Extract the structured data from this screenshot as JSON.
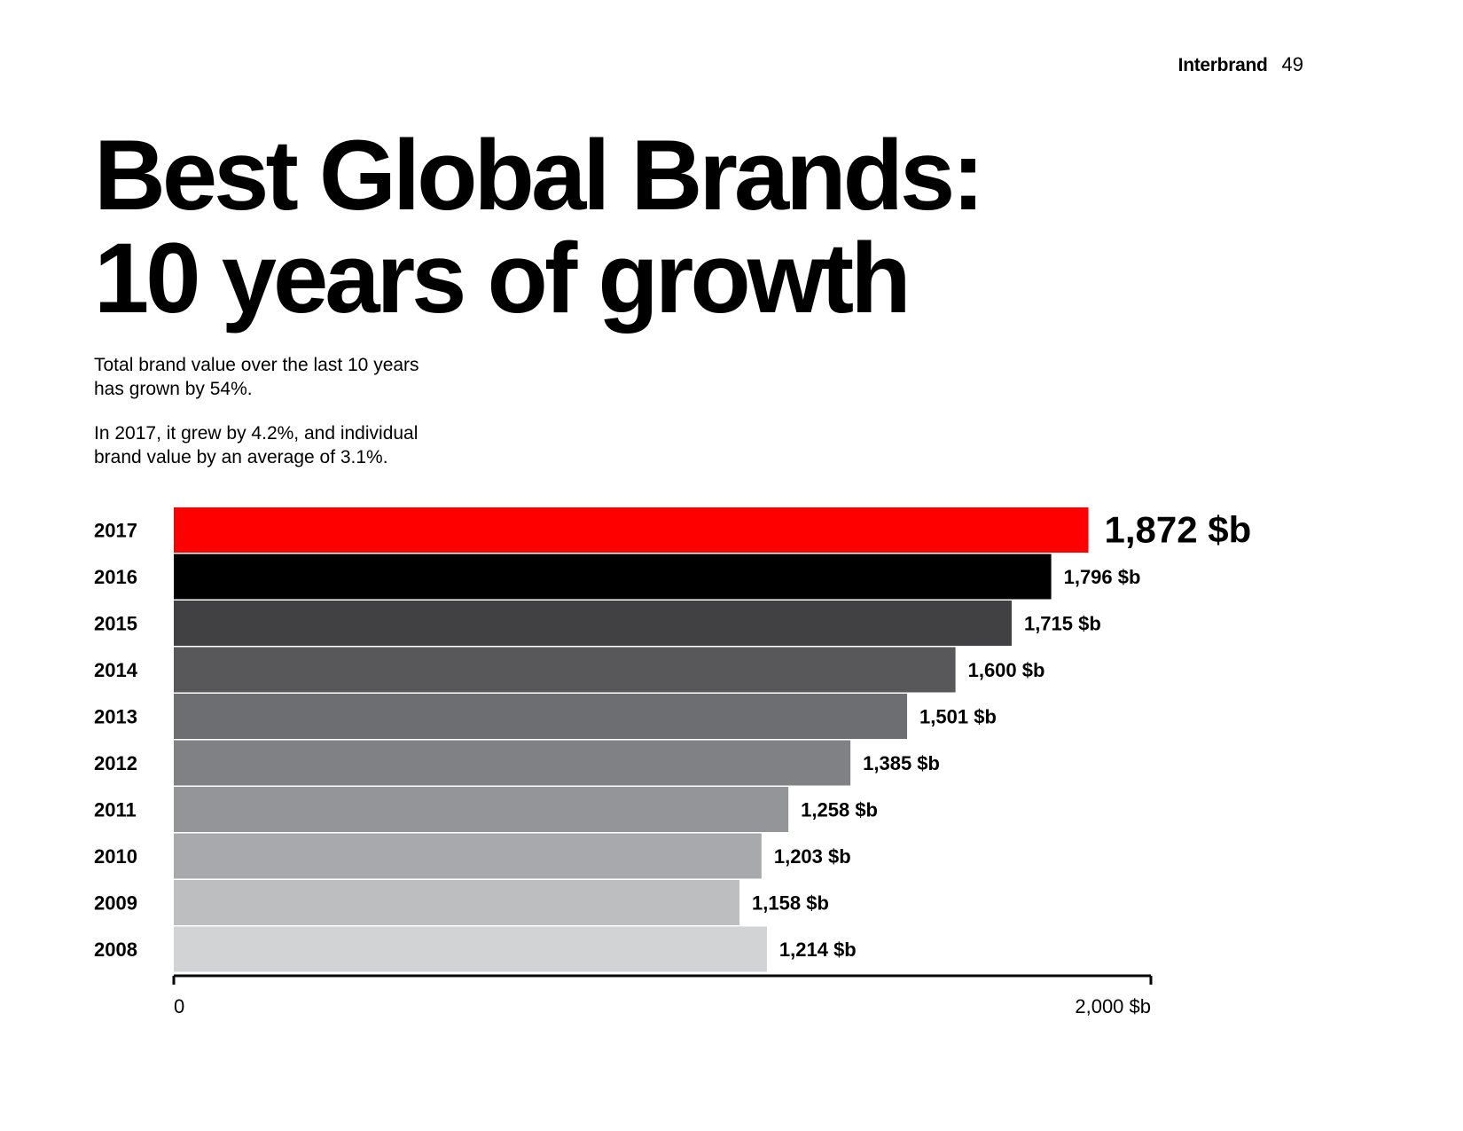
{
  "header": {
    "brand": "Interbrand",
    "page_number": "49"
  },
  "title": {
    "line1": "Best Global Brands:",
    "line2": "10 years of growth"
  },
  "intro": {
    "para1_line1": "Total brand value over the last 10 years",
    "para1_line2": "has grown by 54%.",
    "para2_line1": "In 2017, it grew by 4.2%, and individual",
    "para2_line2": "brand value by an average of 3.1%."
  },
  "chart_data": {
    "type": "bar",
    "orientation": "horizontal",
    "title": "",
    "xlabel": "",
    "ylabel": "",
    "xlim": [
      0,
      2000
    ],
    "categories": [
      "2017",
      "2016",
      "2015",
      "2014",
      "2013",
      "2012",
      "2011",
      "2010",
      "2009",
      "2008"
    ],
    "values": [
      1872,
      1796,
      1715,
      1600,
      1501,
      1385,
      1258,
      1203,
      1158,
      1214
    ],
    "value_labels": [
      "1,872 $b",
      "1,796 $b",
      "1,715 $b",
      "1,600 $b",
      "1,501 $b",
      "1,385 $b",
      "1,258 $b",
      "1,203 $b",
      "1,158 $b",
      "1,214 $b"
    ],
    "colors": [
      "#ff0000",
      "#000000",
      "#414143",
      "#58585b",
      "#6d6e71",
      "#808184",
      "#939598",
      "#a7a9ac",
      "#bcbec0",
      "#d1d3d4"
    ],
    "axis_ticks": [
      "0",
      "2,000 $b"
    ]
  }
}
